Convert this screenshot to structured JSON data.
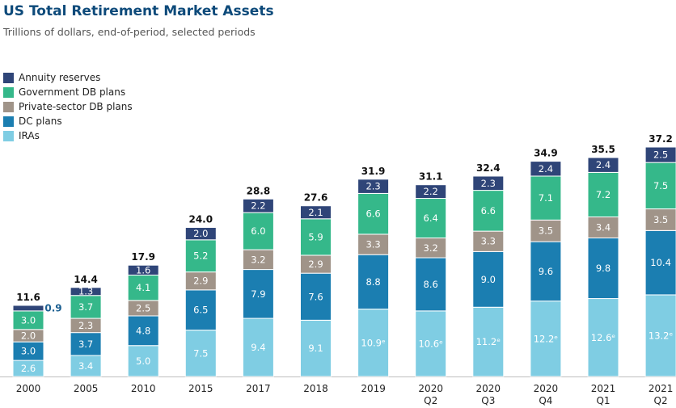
{
  "header": {
    "title": "US Total Retirement Market Assets",
    "subtitle": "Trillions of dollars, end-of-period, selected periods"
  },
  "colors": {
    "iras": "#7fcde3",
    "dc": "#1b7eb1",
    "private_db": "#a09489",
    "government_db": "#35b88a",
    "annuity": "#2f4578"
  },
  "chart_data": {
    "type": "bar",
    "stacked": true,
    "title": "US Total Retirement Market Assets",
    "subtitle": "Trillions of dollars, end-of-period, selected periods",
    "xlabel": "",
    "ylabel": "",
    "legend_position": "top-left",
    "grid": false,
    "categories": [
      [
        "2000"
      ],
      [
        "2005"
      ],
      [
        "2010"
      ],
      [
        "2015"
      ],
      [
        "2017"
      ],
      [
        "2018"
      ],
      [
        "2019"
      ],
      [
        "2020",
        "Q2"
      ],
      [
        "2020",
        "Q3"
      ],
      [
        "2020",
        "Q4"
      ],
      [
        "2021",
        "Q1"
      ],
      [
        "2021",
        "Q2"
      ]
    ],
    "totals": [
      "11.6",
      "14.4",
      "17.9",
      "24.0",
      "28.8",
      "27.6",
      "31.9",
      "31.1",
      "32.4",
      "34.9",
      "35.5",
      "37.2"
    ],
    "series": [
      {
        "name": "IRAs",
        "color": "#7fcde3",
        "values": [
          2.6,
          3.4,
          5.0,
          7.5,
          9.4,
          9.1,
          10.9,
          10.6,
          11.2,
          12.2,
          12.6,
          13.2
        ],
        "labels": [
          "2.6",
          "3.4",
          "5.0",
          "7.5",
          "9.4",
          "9.1",
          "10.9ᵉ",
          "10.6ᵉ",
          "11.2ᵉ",
          "12.2ᵉ",
          "12.6ᵉ",
          "13.2ᵉ"
        ]
      },
      {
        "name": "DC plans",
        "color": "#1b7eb1",
        "values": [
          3.0,
          3.7,
          4.8,
          6.5,
          7.9,
          7.6,
          8.8,
          8.6,
          9.0,
          9.6,
          9.8,
          10.4
        ],
        "labels": [
          "3.0",
          "3.7",
          "4.8",
          "6.5",
          "7.9",
          "7.6",
          "8.8",
          "8.6",
          "9.0",
          "9.6",
          "9.8",
          "10.4"
        ]
      },
      {
        "name": "Private-sector DB plans",
        "color": "#a09489",
        "values": [
          2.0,
          2.3,
          2.5,
          2.9,
          3.2,
          2.9,
          3.3,
          3.2,
          3.3,
          3.5,
          3.4,
          3.5
        ],
        "labels": [
          "2.0",
          "2.3",
          "2.5",
          "2.9",
          "3.2",
          "2.9",
          "3.3",
          "3.2",
          "3.3",
          "3.5",
          "3.4",
          "3.5"
        ]
      },
      {
        "name": "Government DB plans",
        "color": "#35b88a",
        "values": [
          3.0,
          3.7,
          4.1,
          5.2,
          6.0,
          5.9,
          6.6,
          6.4,
          6.6,
          7.1,
          7.2,
          7.5
        ],
        "labels": [
          "3.0",
          "3.7",
          "4.1",
          "5.2",
          "6.0",
          "5.9",
          "6.6",
          "6.4",
          "6.6",
          "7.1",
          "7.2",
          "7.5"
        ]
      },
      {
        "name": "Annuity reserves",
        "color": "#2f4578",
        "values": [
          0.9,
          1.3,
          1.6,
          2.0,
          2.2,
          2.1,
          2.3,
          2.2,
          2.3,
          2.4,
          2.4,
          2.5
        ],
        "labels": [
          "0.9",
          "1.3",
          "1.6",
          "2.0",
          "2.2",
          "2.1",
          "2.3",
          "2.2",
          "2.3",
          "2.4",
          "2.4",
          "2.5"
        ]
      }
    ],
    "legend": [
      "Annuity reserves",
      "Government DB plans",
      "Private-sector DB plans",
      "DC plans",
      "IRAs"
    ]
  }
}
